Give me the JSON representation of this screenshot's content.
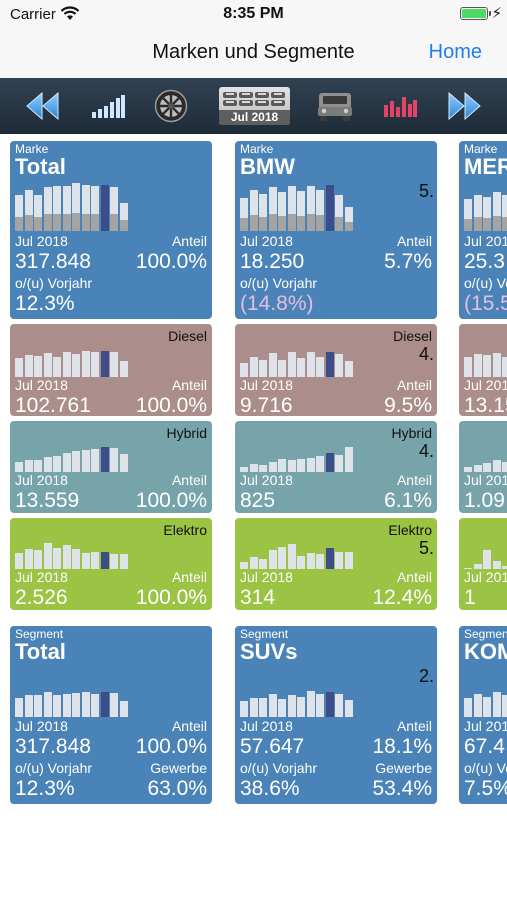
{
  "status": {
    "carrier": "Carrier",
    "time": "8:35 PM"
  },
  "nav": {
    "title": "Marken und Segmente",
    "home": "Home"
  },
  "toolbar": {
    "icons": [
      "rewind-icon",
      "bar-chart-icon",
      "wheel-icon",
      "date-selector",
      "suv-icon",
      "red-bar-chart-icon",
      "fast-forward-icon"
    ],
    "date_label": "Jul 2018"
  },
  "colors": {
    "blue": "#4a83b7",
    "rose": "#ab8e8b",
    "teal": "#77a4aa",
    "green": "#9bc344",
    "bar_light": "#dde3e8",
    "bar_gray": "#a4a4a4",
    "bar_highlight": "#3c4d8a",
    "home": "#1e7ef2"
  },
  "labels": {
    "marke": "Marke",
    "segment": "Segment",
    "anteil": "Anteil",
    "vorjahr": "o/(u) Vorjahr",
    "gewerbe": "Gewerbe",
    "date": "Jul 2018"
  },
  "brands": {
    "total": {
      "name": "Total",
      "value": "317.848",
      "share": "100.0%",
      "change": "12.3%",
      "diesel": {
        "label": "Diesel",
        "value": "102.761",
        "share": "100.0%"
      },
      "hybrid": {
        "label": "Hybrid",
        "value": "13.559",
        "share": "100.0%"
      },
      "elektro": {
        "label": "Elektro",
        "value": "2.526",
        "share": "100.0%"
      }
    },
    "bmw": {
      "name": "BMW",
      "rank": "5.",
      "value": "18.250",
      "share": "5.7%",
      "change": "(14.8%)",
      "diesel": {
        "label": "Diesel",
        "rank": "4.",
        "value": "9.716",
        "share": "9.5%"
      },
      "hybrid": {
        "label": "Hybrid",
        "rank": "4.",
        "value": "825",
        "share": "6.1%"
      },
      "elektro": {
        "label": "Elektro",
        "rank": "5.",
        "value": "314",
        "share": "12.4%"
      }
    },
    "mercedes": {
      "name": "MER",
      "value": "25.3",
      "change": "(15.5",
      "diesel": {
        "value": "13.15"
      },
      "hybrid": {
        "value": "1.09"
      },
      "elektro": {
        "value": "1"
      }
    }
  },
  "segments": {
    "total": {
      "name": "Total",
      "value": "317.848",
      "share": "100.0%",
      "change": "12.3%",
      "commercial": "63.0%"
    },
    "suvs": {
      "name": "SUVs",
      "rank": "2.",
      "value": "57.647",
      "share": "18.1%",
      "change": "38.6%",
      "commercial": "53.4%"
    },
    "kom": {
      "name": "KOM",
      "value": "67.4",
      "change": "7.5%"
    }
  }
}
